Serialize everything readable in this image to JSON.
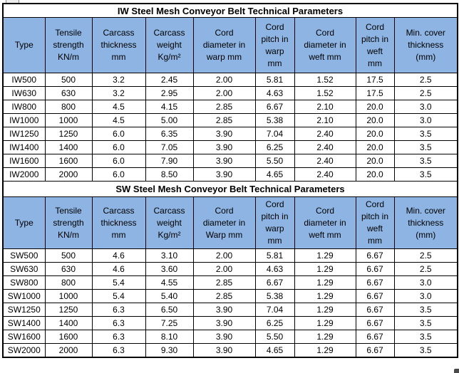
{
  "colors": {
    "header_bg": "#8db4e2",
    "cell_bg": "#ffffff",
    "border": "#000000",
    "text": "#000000"
  },
  "artifacts": {
    "top_left_fragment": "partial-grey-ui-fragment",
    "bottom_right_mark": "small-dark-corner-mark"
  },
  "tables": [
    {
      "title": "IW Steel Mesh Conveyor Belt Technical Parameters",
      "headers": [
        "Type",
        "Tensile\nstrength\nKN/m",
        "Carcass\nthickness\nmm",
        "Carcass\nweight\nKg/m²",
        "Cord\ndiameter in\nwarp mm",
        "Cord\npitch in\nwarp\nmm",
        "Cord\ndiameter in\nweft mm",
        "Cord\npitch in\nweft\nmm",
        "Min. cover\nthickness\n(mm)"
      ],
      "rows": [
        [
          "IW500",
          "500",
          "3.2",
          "2.45",
          "2.00",
          "5.81",
          "1.52",
          "17.5",
          "2.5"
        ],
        [
          "IW630",
          "630",
          "3.2",
          "2.95",
          "2.00",
          "4.63",
          "1.52",
          "17.5",
          "2.5"
        ],
        [
          "IW800",
          "800",
          "4.5",
          "4.15",
          "2.85",
          "6.67",
          "2.10",
          "20.0",
          "3.0"
        ],
        [
          "IW1000",
          "1000",
          "4.5",
          "5.00",
          "2.85",
          "5.38",
          "2.10",
          "20.0",
          "3.0"
        ],
        [
          "IW1250",
          "1250",
          "6.0",
          "6.35",
          "3.90",
          "7.04",
          "2.40",
          "20.0",
          "3.5"
        ],
        [
          "IW1400",
          "1400",
          "6.0",
          "7.05",
          "3.90",
          "6.25",
          "2.40",
          "20.0",
          "3.5"
        ],
        [
          "IW1600",
          "1600",
          "6.0",
          "7.90",
          "3.90",
          "5.50",
          "2.40",
          "20.0",
          "3.5"
        ],
        [
          "IW2000",
          "2000",
          "6.0",
          "8.50",
          "3.90",
          "4.65",
          "2.40",
          "20.0",
          "3.5"
        ]
      ]
    },
    {
      "title": "SW Steel Mesh Conveyor Belt Technical Parameters",
      "headers": [
        "Type",
        "Tensile\nstrength\nKN/m",
        "Carcass\nthickness\nmm",
        "Carcass\nweight\nKg/m²",
        "Cord\ndiameter in\nWarp mm",
        "Cord\npitch in\nwarp\nmm",
        "Cord\ndiameter in\nweft mm",
        "Cord\npitch in\nweft\nmm",
        "Min. cover\nthickness\n(mm)"
      ],
      "rows": [
        [
          "SW500",
          "500",
          "4.6",
          "3.10",
          "2.00",
          "5.81",
          "1.29",
          "6.67",
          "2.5"
        ],
        [
          "SW630",
          "630",
          "4.6",
          "3.60",
          "2.00",
          "4.63",
          "1.29",
          "6.67",
          "2.5"
        ],
        [
          "SW800",
          "800",
          "5.4",
          "4.55",
          "2.85",
          "6.67",
          "1.29",
          "6.67",
          "3.0"
        ],
        [
          "SW1000",
          "1000",
          "5.4",
          "5.40",
          "2.85",
          "5.38",
          "1.29",
          "6.67",
          "3.0"
        ],
        [
          "SW1250",
          "1250",
          "6.3",
          "6.50",
          "3.90",
          "7.04",
          "1.29",
          "6.67",
          "3.5"
        ],
        [
          "SW1400",
          "1400",
          "6.3",
          "7.25",
          "3.90",
          "6.25",
          "1.29",
          "6.67",
          "3.5"
        ],
        [
          "SW1600",
          "1600",
          "6.3",
          "8.10",
          "3.90",
          "5.50",
          "1.29",
          "6.67",
          "3.5"
        ],
        [
          "SW2000",
          "2000",
          "6.3",
          "9.30",
          "3.90",
          "4.65",
          "1.29",
          "6.67",
          "3.5"
        ]
      ]
    }
  ]
}
